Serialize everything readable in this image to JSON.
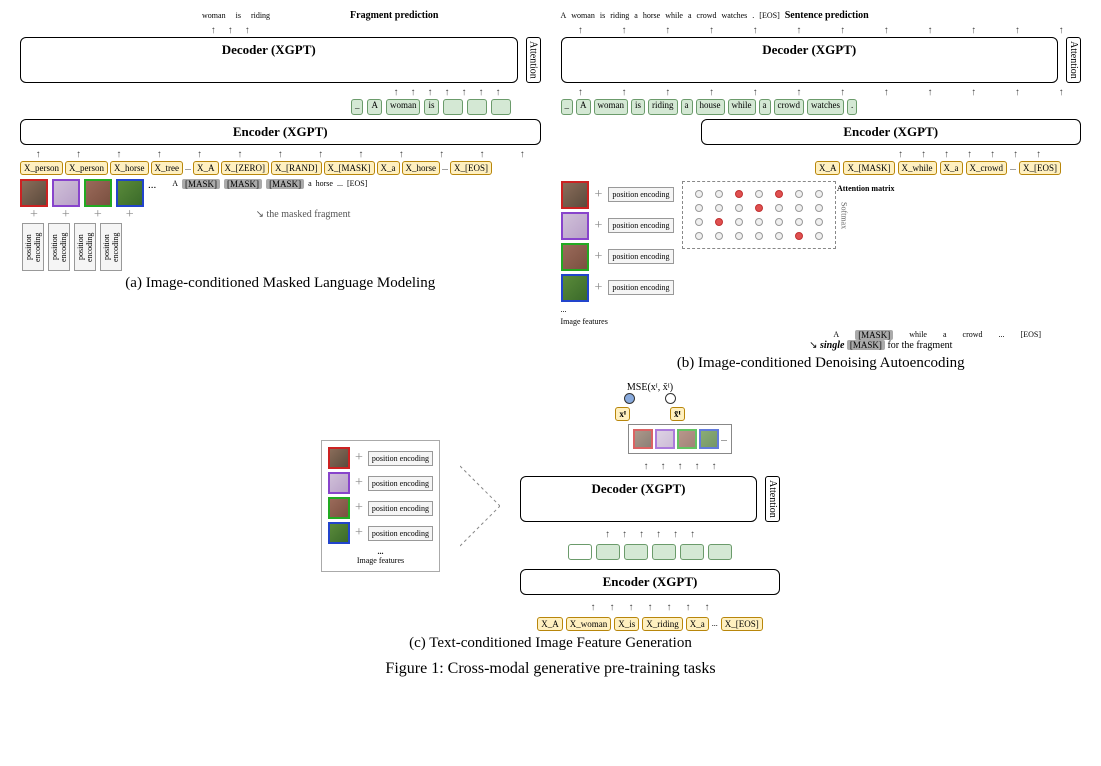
{
  "panel_a": {
    "caption": "(a) Image-conditioned Masked Language Modeling",
    "output_words": [
      "woman",
      "is",
      "riding"
    ],
    "output_label": "Fragment prediction",
    "decoder_label": "Decoder (XGPT)",
    "encoder_label": "Encoder (XGPT)",
    "attention_label": "Attention",
    "decoder_inputs": [
      "_",
      "A",
      "woman",
      "is",
      "_",
      "_",
      "_"
    ],
    "encoder_tokens": [
      "X_person",
      "X_person",
      "X_horse",
      "X_tree",
      "...",
      "X_A",
      "X_[ZERO]",
      "X_[RAND]",
      "X_[MASK]",
      "X_a",
      "X_horse",
      "...",
      "X_[EOS]"
    ],
    "raw_tokens": [
      "A",
      "[MASK]",
      "[MASK]",
      "[MASK]",
      "a",
      "horse",
      "...",
      "[EOS]"
    ],
    "masked_note": "the masked fragment",
    "image_tiles": [
      {
        "color": "c-red"
      },
      {
        "color": "c-purple"
      },
      {
        "color": "c-green"
      },
      {
        "color": "c-blue"
      }
    ],
    "pos_enc_label": "position encoding",
    "ellipsis": "..."
  },
  "panel_b": {
    "caption": "(b) Image-conditioned Denoising Autoencoding",
    "output_words": [
      "A",
      "woman",
      "is",
      "riding",
      "a",
      "horse",
      "while",
      "a",
      "crowd",
      "watches",
      ".",
      "[EOS]"
    ],
    "output_label": "Sentence prediction",
    "decoder_label": "Decoder (XGPT)",
    "encoder_label": "Encoder (XGPT)",
    "attention_label": "Attention",
    "decoder_inputs": [
      "_",
      "A",
      "woman",
      "is",
      "riding",
      "a",
      "house",
      "while",
      "a",
      "crowd",
      "watches",
      "."
    ],
    "encoder_tokens": [
      "X_A",
      "X_[MASK]",
      "X_while",
      "X_a",
      "X_crowd",
      "...",
      "X_[EOS]"
    ],
    "image_tiles": [
      {
        "color": "c-red"
      },
      {
        "color": "c-purple"
      },
      {
        "color": "c-green"
      },
      {
        "color": "c-blue"
      }
    ],
    "pos_enc_label": "position encoding",
    "plus": "+",
    "attn_matrix_label": "Attention matrix",
    "softmax_label": "Softmax",
    "img_feat_label": "Image features",
    "bottom_tokens": [
      "A",
      "[MASK]",
      "while",
      "a",
      "crowd",
      "...",
      "[EOS]"
    ],
    "mask_note_1": "single",
    "mask_note_2": "[MASK]",
    "mask_note_3": "for the fragment",
    "attn_grid": {
      "rows": 4,
      "cols": 7,
      "active": [
        [
          0,
          2
        ],
        [
          0,
          4
        ],
        [
          1,
          3
        ],
        [
          2,
          1
        ],
        [
          3,
          5
        ]
      ],
      "circle_on_color": "#e05050",
      "circle_off_color": "#f0f0f0"
    }
  },
  "panel_c": {
    "caption": "(c) Text-conditioned Image Feature Generation",
    "mse_label": "MSE(xᴵ, x̃ᴵ)",
    "x_label": "xᴵ",
    "xtilde_label": "x̃ᴵ",
    "decoder_label": "Decoder (XGPT)",
    "encoder_label": "Encoder (XGPT)",
    "attention_label": "Attention",
    "encoder_tokens": [
      "X_A",
      "X_woman",
      "X_is",
      "X_riding",
      "X_a",
      "...",
      "X_[EOS]"
    ],
    "left_tiles": [
      {
        "color": "c-red"
      },
      {
        "color": "c-purple"
      },
      {
        "color": "c-green"
      },
      {
        "color": "c-blue"
      }
    ],
    "pos_enc_label": "position encoding",
    "plus": "+",
    "img_feat_label": "Image features",
    "ellipsis": "..."
  },
  "figure_caption": "Figure 1: Cross-modal generative pre-training tasks",
  "colors": {
    "token_bg": "#fff0c0",
    "token_border": "#b8860b",
    "green_bg": "#d4e8d4",
    "green_border": "#6b9b6b",
    "mask_bg": "#aaaaaa",
    "background": "#ffffff"
  }
}
